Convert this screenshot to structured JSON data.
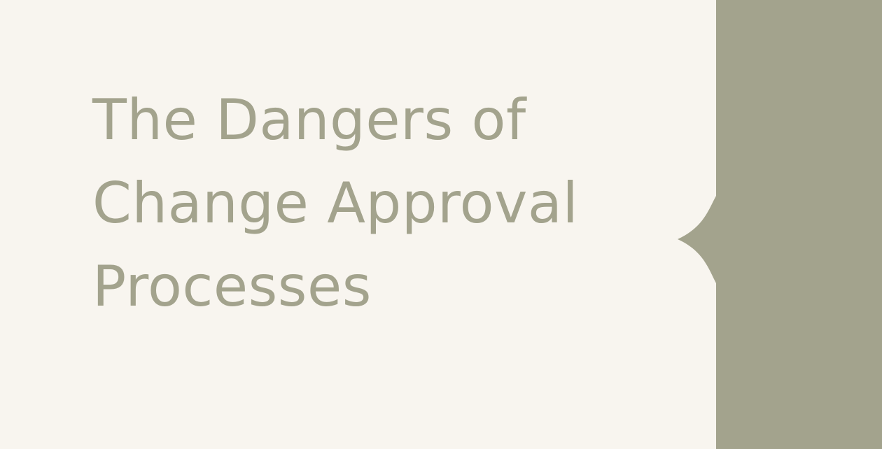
{
  "title": {
    "line1": "The Dangers of",
    "line2": "Change Approval",
    "line3": "Processes"
  },
  "colors": {
    "background": "#f8f5ef",
    "accent": "#a3a38d"
  }
}
